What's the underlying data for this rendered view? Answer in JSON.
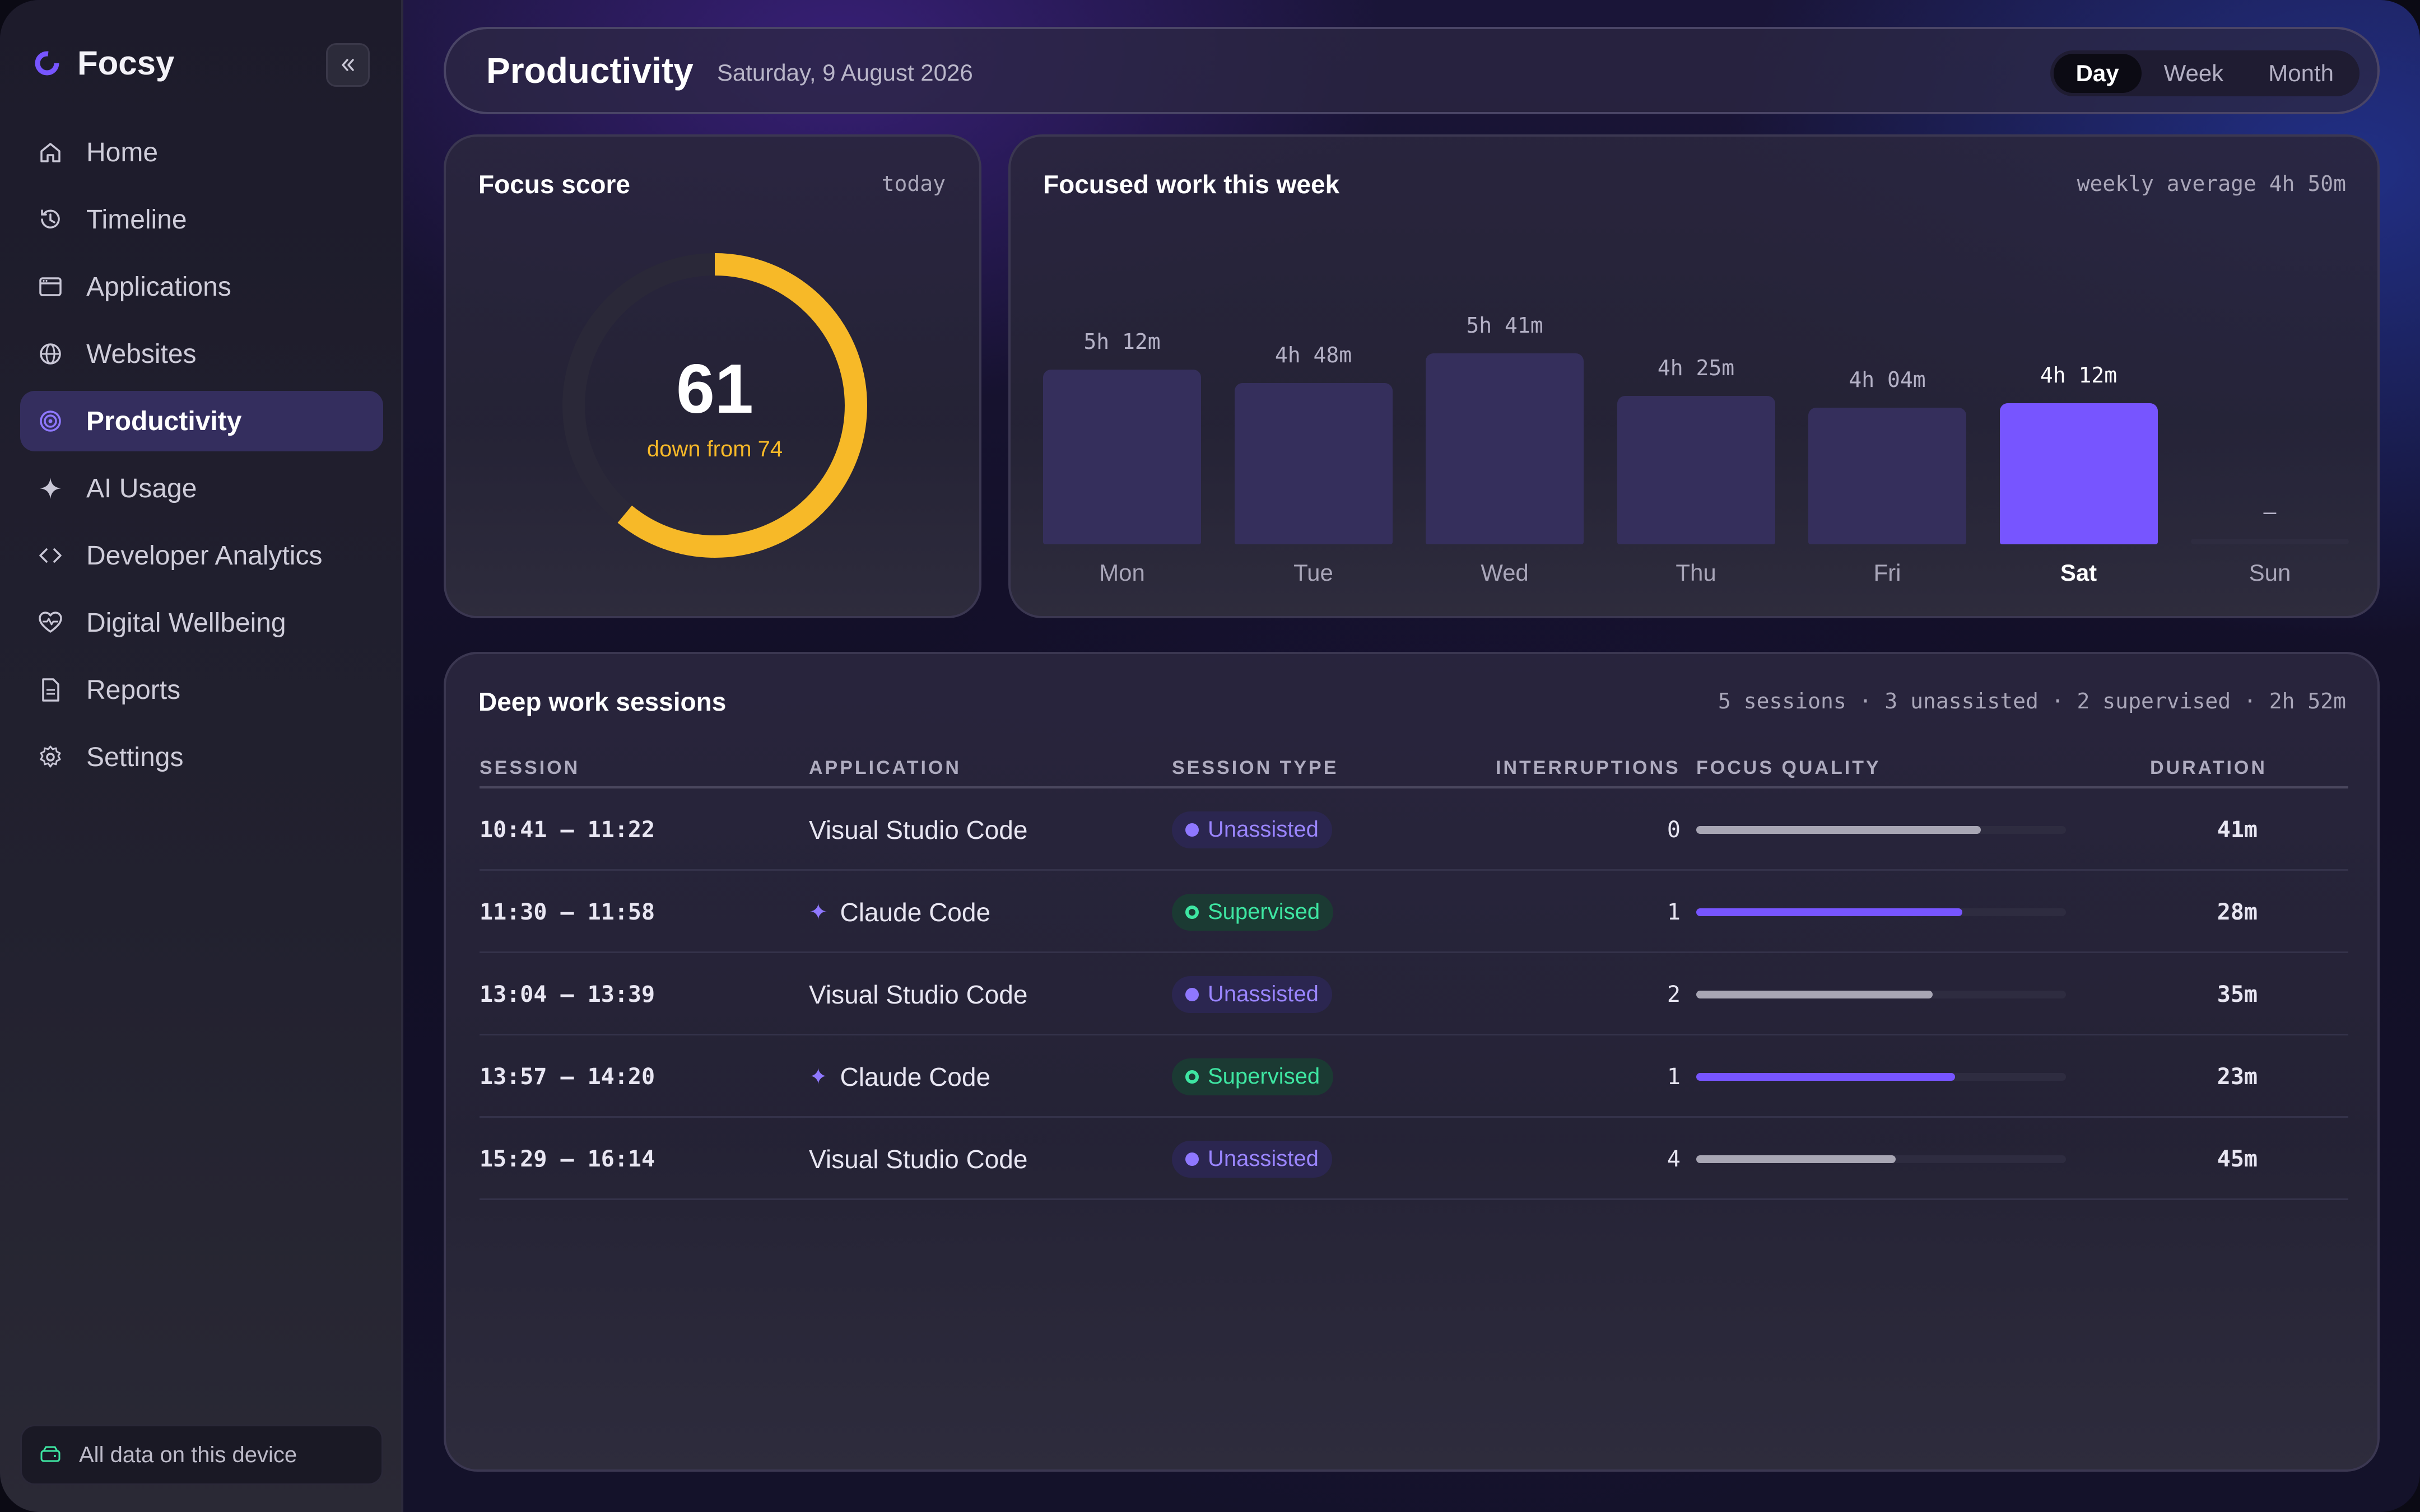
{
  "app": {
    "name": "Focsy",
    "accent": "#7755ff",
    "warn": "#f7b928",
    "success": "#3ee6a2"
  },
  "sidebar": {
    "items": [
      {
        "label": "Home",
        "icon": "home-icon"
      },
      {
        "label": "Timeline",
        "icon": "history-icon"
      },
      {
        "label": "Applications",
        "icon": "window-icon"
      },
      {
        "label": "Websites",
        "icon": "globe-icon"
      },
      {
        "label": "Productivity",
        "icon": "target-icon",
        "active": true
      },
      {
        "label": "AI Usage",
        "icon": "sparkle-icon"
      },
      {
        "label": "Developer Analytics",
        "icon": "code-icon"
      },
      {
        "label": "Digital Wellbeing",
        "icon": "heart-pulse-icon"
      },
      {
        "label": "Reports",
        "icon": "document-icon"
      },
      {
        "label": "Settings",
        "icon": "gear-icon"
      }
    ],
    "footer_note": "All data on this device"
  },
  "header": {
    "title": "Productivity",
    "date": "Saturday, 9 August 2026",
    "ranges": [
      "Day",
      "Week",
      "Month"
    ],
    "active_range": "Day"
  },
  "focus_score": {
    "title": "Focus score",
    "period": "today",
    "score": "61",
    "score_value": 61,
    "score_max": 100,
    "change_text": "down from 74"
  },
  "chart_data": {
    "type": "bar",
    "title": "Focused work this week",
    "summary": "weekly average 4h 50m",
    "categories": [
      "Mon",
      "Tue",
      "Wed",
      "Thu",
      "Fri",
      "Sat",
      "Sun"
    ],
    "values": [
      312,
      288,
      341,
      265,
      244,
      252,
      0
    ],
    "labels": [
      "5h 12m",
      "4h 48m",
      "5h 41m",
      "4h 25m",
      "4h 04m",
      "4h 12m",
      "–"
    ],
    "unit": "minutes",
    "highlight": "Sat"
  },
  "sessions": {
    "title": "Deep work sessions",
    "summary": "5 sessions · 3 unassisted · 2 supervised · 2h 52m",
    "columns": [
      "SESSION",
      "APPLICATION",
      "SESSION TYPE",
      "INTERRUPTIONS",
      "FOCUS QUALITY",
      "DURATION"
    ],
    "rows": [
      {
        "time": "10:41 – 11:22",
        "app": "Visual Studio Code",
        "ai": false,
        "type": "Unassisted",
        "interruptions": "0",
        "quality": 0.77,
        "duration": "41m"
      },
      {
        "time": "11:30 – 11:58",
        "app": "Claude Code",
        "ai": true,
        "type": "Supervised",
        "interruptions": "1",
        "quality": 0.72,
        "duration": "28m"
      },
      {
        "time": "13:04 – 13:39",
        "app": "Visual Studio Code",
        "ai": false,
        "type": "Unassisted",
        "interruptions": "2",
        "quality": 0.64,
        "duration": "35m"
      },
      {
        "time": "13:57 – 14:20",
        "app": "Claude Code",
        "ai": true,
        "type": "Supervised",
        "interruptions": "1",
        "quality": 0.7,
        "duration": "23m"
      },
      {
        "time": "15:29 – 16:14",
        "app": "Visual Studio Code",
        "ai": false,
        "type": "Unassisted",
        "interruptions": "4",
        "quality": 0.54,
        "duration": "45m"
      }
    ]
  }
}
